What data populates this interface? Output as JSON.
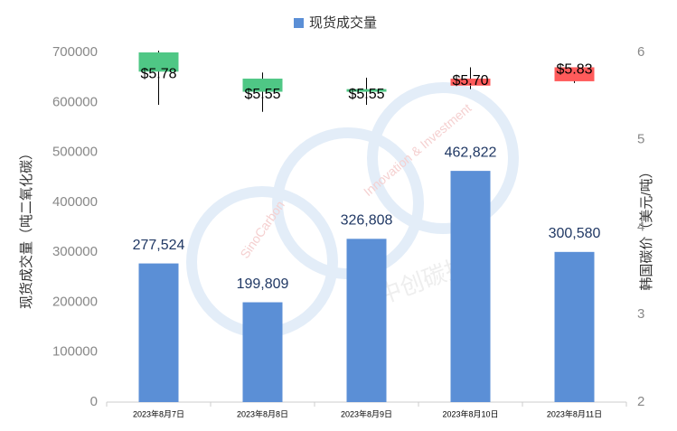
{
  "chart_data": {
    "type": "bar",
    "legend": "top",
    "watermark": [
      "SinoCarbon",
      "Innovation & Investment",
      "中创碳投"
    ],
    "y_label": "现货成交量（吨二氧化碳）",
    "y2_label": "韩国碳价（美元/吨）",
    "categories": [
      "2023年8月7日",
      "2023年8月8日",
      "2023年8月9日",
      "2023年8月10日",
      "2023年8月11日"
    ],
    "series": [
      {
        "name": "现货成交量",
        "type": "bar",
        "color": "#5b8fd6",
        "values": [
          277524,
          199809,
          326808,
          462822,
          300580
        ],
        "value_labels": [
          "277,524",
          "199,809",
          "326,808",
          "462,822",
          "300,580"
        ]
      },
      {
        "type": "candlestick",
        "axis": "y2",
        "up_color": "#ff5b5b",
        "down_color": "#4fc785",
        "open": [
          6.0,
          5.7,
          5.58,
          5.62,
          5.67
        ],
        "high": [
          6.02,
          5.77,
          5.71,
          5.83,
          5.83
        ],
        "low": [
          5.4,
          5.32,
          5.4,
          5.58,
          5.65
        ],
        "close": [
          5.78,
          5.55,
          5.55,
          5.7,
          5.83
        ],
        "value_labels": [
          "$5.78",
          "$5.55",
          "$5.55",
          "$5.70",
          "$5.83"
        ]
      }
    ],
    "ylim": [
      0,
      700000
    ],
    "yticks": [
      0,
      100000,
      200000,
      300000,
      400000,
      500000,
      600000,
      700000
    ],
    "y2lim": [
      2,
      6
    ],
    "y2ticks": [
      2,
      3,
      4,
      5,
      6
    ]
  }
}
